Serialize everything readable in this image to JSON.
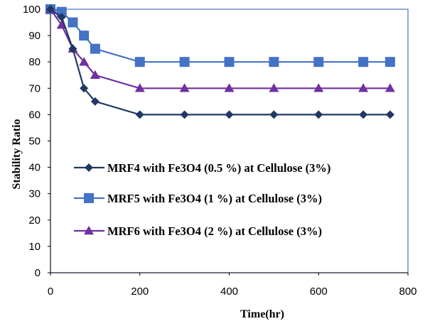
{
  "chart_data": {
    "type": "line",
    "title": "",
    "xlabel": "Time(hr)",
    "ylabel": "Stability Ratio",
    "xlim": [
      0,
      800
    ],
    "ylim": [
      0,
      100
    ],
    "x_ticks": [
      "0",
      "200",
      "400",
      "600",
      "800"
    ],
    "y_ticks": [
      "0",
      "10",
      "20",
      "30",
      "40",
      "50",
      "60",
      "70",
      "80",
      "90",
      "100"
    ],
    "grid": false,
    "legend_position": "lower-left inside plot",
    "series": [
      {
        "name": "MRF4 with Fe3O4 (0.5 %) at Cellulose (3%)",
        "color": "#1f3864",
        "marker": "diamond",
        "x": [
          0,
          25,
          50,
          75,
          100,
          200,
          300,
          400,
          500,
          600,
          700,
          760
        ],
        "y": [
          100,
          97,
          85,
          70,
          65,
          60,
          60,
          60,
          60,
          60,
          60,
          60
        ]
      },
      {
        "name": "MRF5 with Fe3O4 (1 %) at Cellulose (3%)",
        "color": "#4472c4",
        "marker": "square",
        "x": [
          0,
          25,
          50,
          75,
          100,
          200,
          300,
          400,
          500,
          600,
          700,
          760
        ],
        "y": [
          100,
          99,
          95,
          90,
          85,
          80,
          80,
          80,
          80,
          80,
          80,
          80
        ]
      },
      {
        "name": "MRF6 with Fe3O4 (2 %) at Cellulose (3%)",
        "color": "#7030a0",
        "marker": "triangle",
        "x": [
          0,
          25,
          50,
          75,
          100,
          200,
          300,
          400,
          500,
          600,
          700,
          760
        ],
        "y": [
          100,
          94,
          85,
          80,
          75,
          70,
          70,
          70,
          70,
          70,
          70,
          70
        ]
      }
    ]
  }
}
